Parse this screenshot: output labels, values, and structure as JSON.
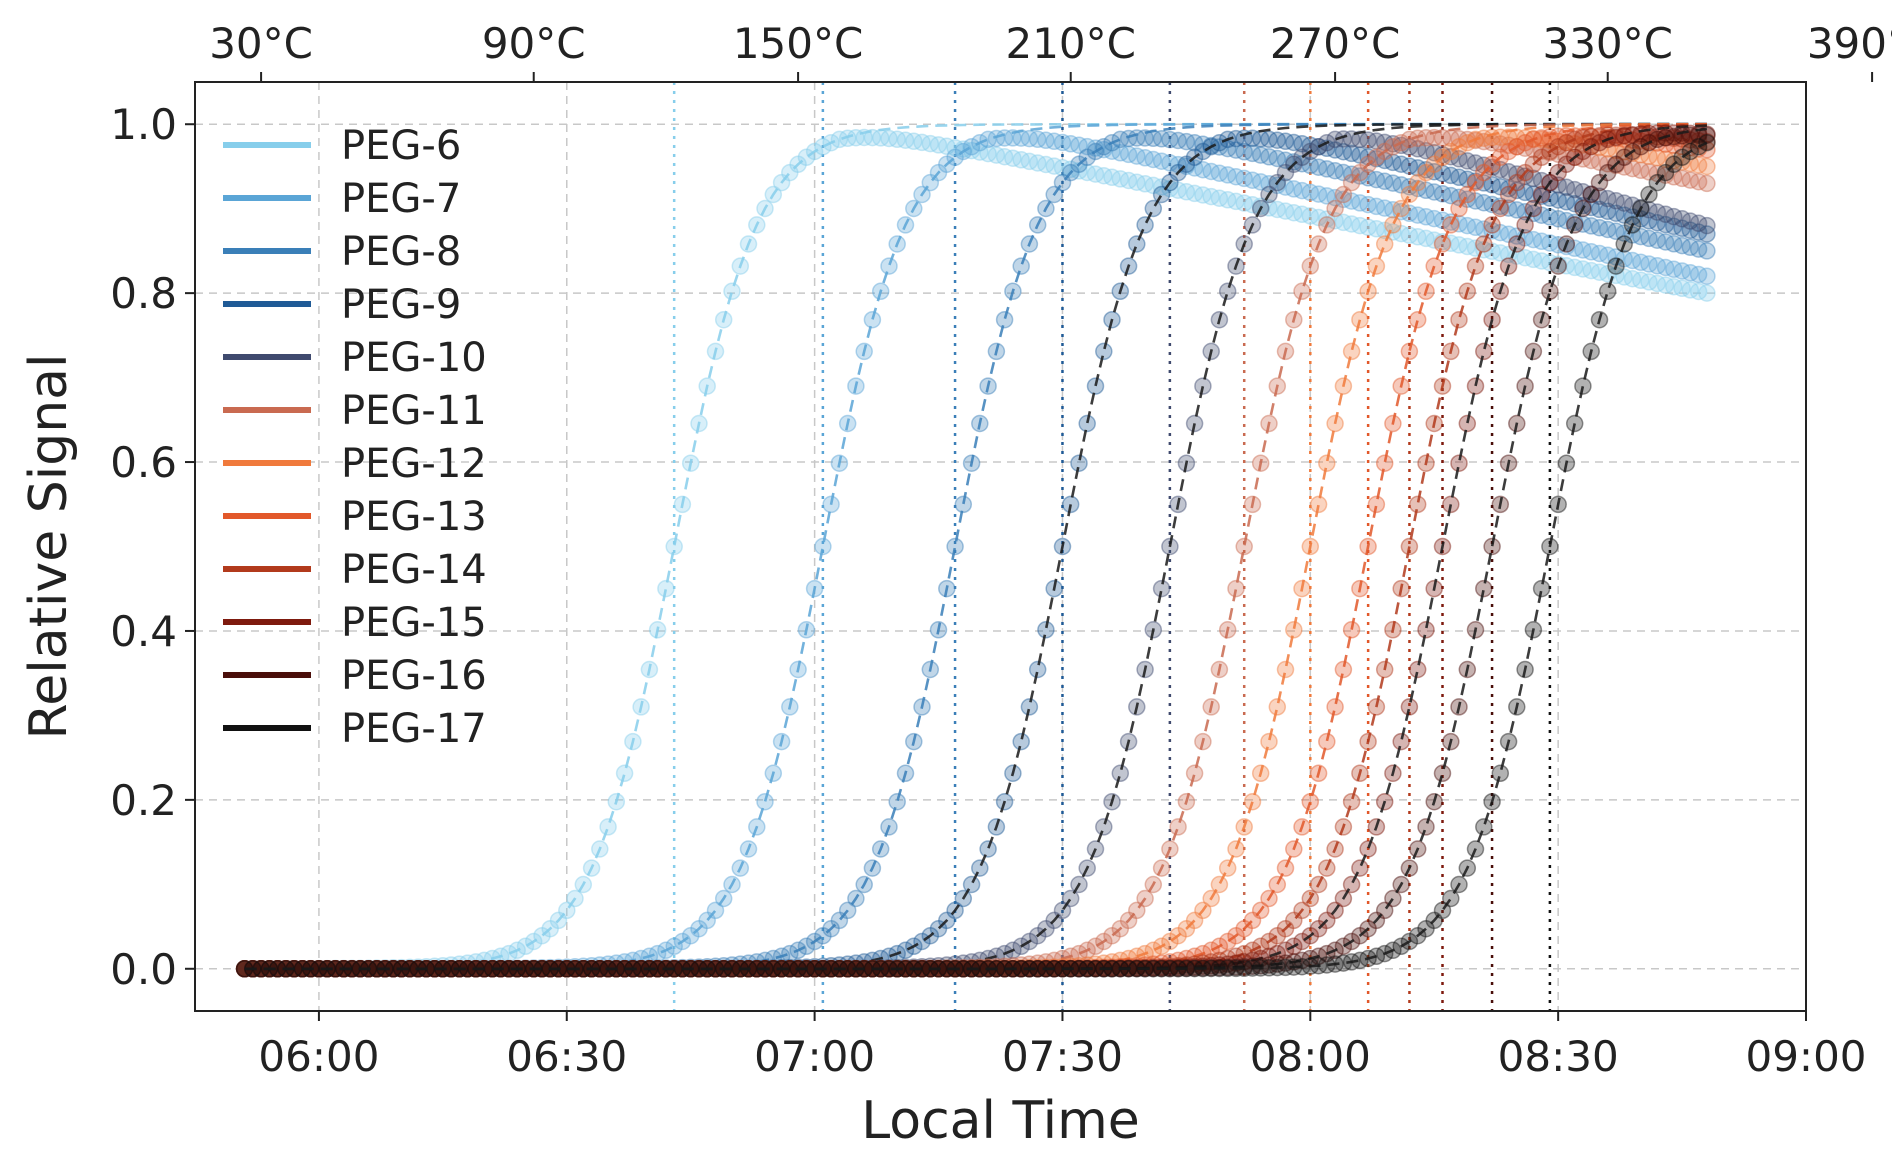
{
  "chart_data": {
    "type": "line",
    "xlabel": "Local Time",
    "ylabel": "Relative Signal",
    "x_unit": "HH:MM",
    "xlim": [
      "05:45",
      "09:00"
    ],
    "ylim": [
      -0.05,
      1.05
    ],
    "x_ticks": [
      "06:00",
      "06:30",
      "07:00",
      "07:30",
      "08:00",
      "08:30",
      "09:00"
    ],
    "y_ticks": [
      "0.0",
      "0.2",
      "0.4",
      "0.6",
      "0.8",
      "1.0"
    ],
    "top_axis": {
      "label": "",
      "ticks": [
        "30°C",
        "90°C",
        "150°C",
        "210°C",
        "270°C",
        "330°C",
        "390°C"
      ],
      "tick_times": [
        "05:53",
        "06:26",
        "06:58",
        "07:31",
        "08:03",
        "08:36",
        "09:08"
      ]
    },
    "grid": true,
    "legend_position": "top-left",
    "series": [
      {
        "name": "PEG-6",
        "color": "#87ceeb",
        "midpoint": "06:43",
        "end_value": 0.8
      },
      {
        "name": "PEG-7",
        "color": "#5aa5d6",
        "midpoint": "07:01",
        "end_value": 0.82
      },
      {
        "name": "PEG-8",
        "color": "#3a7fb8",
        "midpoint": "07:17",
        "end_value": 0.85
      },
      {
        "name": "PEG-9",
        "color": "#1f5a96",
        "midpoint": "07:30",
        "end_value": 0.87
      },
      {
        "name": "PEG-10",
        "color": "#3f4a6e",
        "midpoint": "07:43",
        "end_value": 0.88
      },
      {
        "name": "PEG-11",
        "color": "#c96a50",
        "midpoint": "07:52",
        "end_value": 0.93
      },
      {
        "name": "PEG-12",
        "color": "#f07a3c",
        "midpoint": "08:00",
        "end_value": 0.95
      },
      {
        "name": "PEG-13",
        "color": "#e2582a",
        "midpoint": "08:07",
        "end_value": 0.97
      },
      {
        "name": "PEG-14",
        "color": "#b23a1c",
        "midpoint": "08:12",
        "end_value": 0.98
      },
      {
        "name": "PEG-15",
        "color": "#7e1a0e",
        "midpoint": "08:16",
        "end_value": 0.99
      },
      {
        "name": "PEG-16",
        "color": "#4a0e0a",
        "midpoint": "08:22",
        "end_value": 0.99
      },
      {
        "name": "PEG-17",
        "color": "#111111",
        "midpoint": "08:29",
        "end_value": 0.98
      }
    ]
  }
}
